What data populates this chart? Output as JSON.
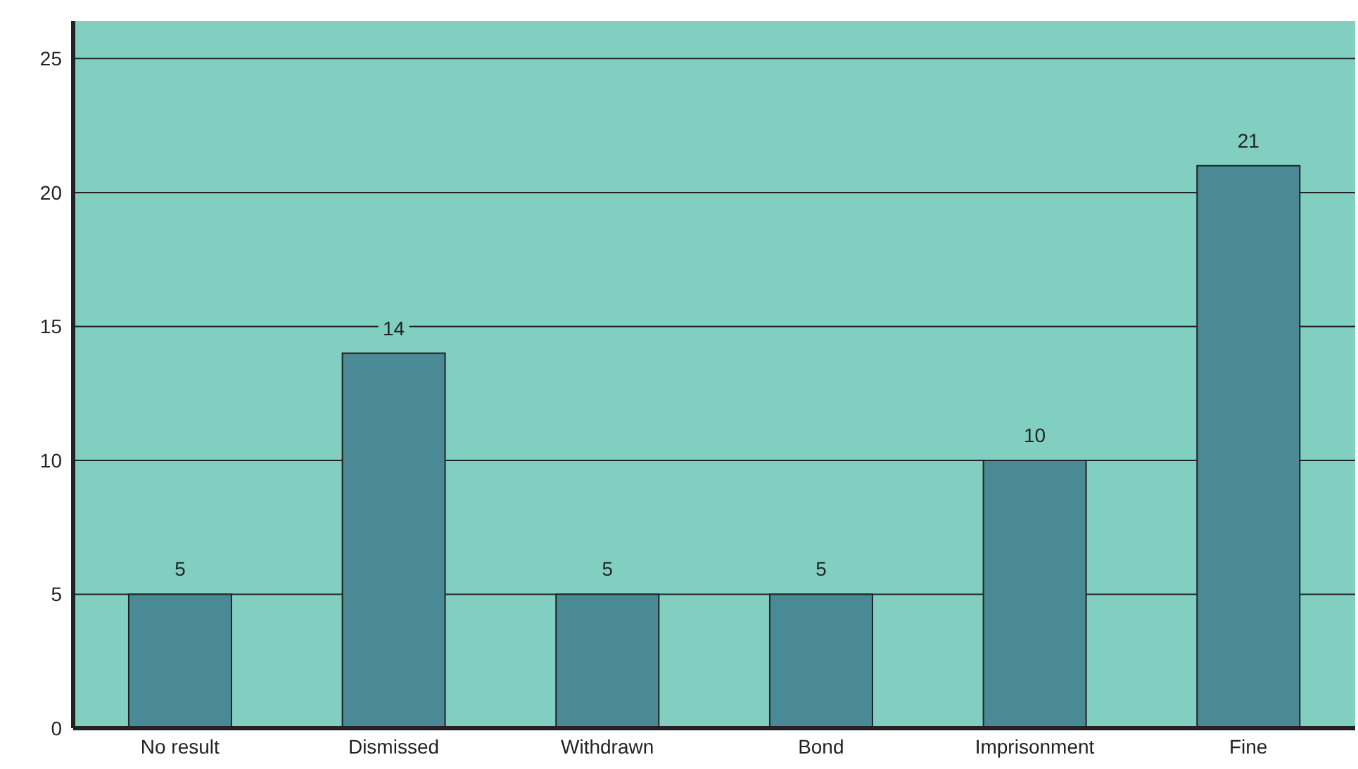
{
  "chart_data": {
    "type": "bar",
    "categories": [
      "No result",
      "Dismissed",
      "Withdrawn",
      "Bond",
      "Imprisonment",
      "Fine"
    ],
    "values": [
      5,
      14,
      5,
      5,
      10,
      21
    ],
    "color": "#4a8996",
    "ylim": [
      0,
      26.4
    ],
    "yticks": [
      0,
      5,
      10,
      15,
      20,
      25
    ],
    "grid": "y",
    "data_labels": true
  }
}
